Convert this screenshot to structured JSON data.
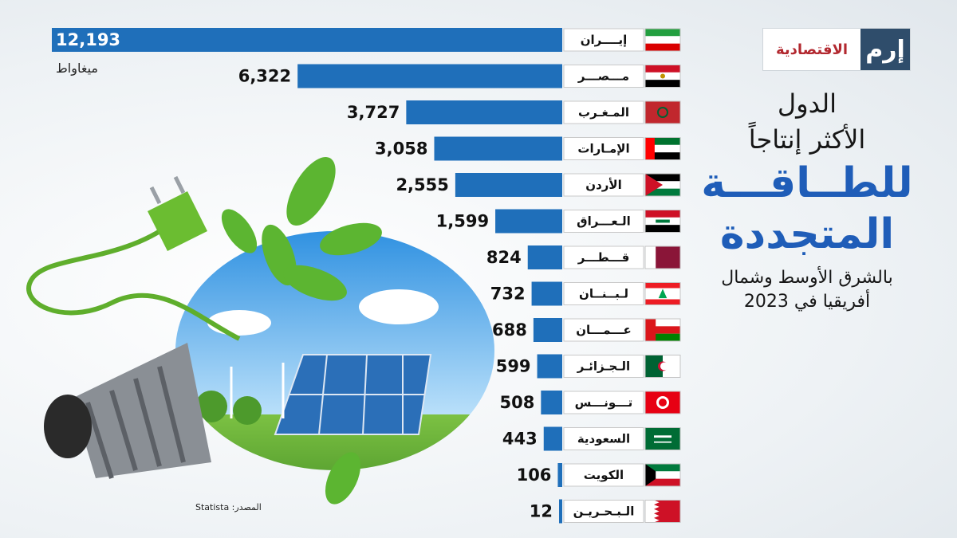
{
  "brand": {
    "mark": "إرم",
    "name": "الاقتصادية"
  },
  "title": {
    "line1": "الدول",
    "line2": "الأكثر إنتاجاً",
    "line3": "للطــاقـــة",
    "line4": "المتجددة",
    "line5": "بالشرق الأوسط وشمال",
    "line6": "أفريقيا في 2023"
  },
  "unit_label": "ميغاواط",
  "source_label": "Statista :المصدر",
  "colors": {
    "bar": "#1f6fba",
    "title_accent": "#1f5db8",
    "brand_red": "#b2282f",
    "brand_navy": "#2f4d6b"
  },
  "chart_data": {
    "type": "bar",
    "orientation": "horizontal",
    "categories": [
      "إيــــران",
      "مـــصـــر",
      "المـغـرب",
      "الإمـارات",
      "الأردن",
      "الـعـــراق",
      "قـــطـــر",
      "لـبــنــان",
      "عـــمـــان",
      "الـجـزائـر",
      "تـــونـــس",
      "السعودية",
      "الكويت",
      "الـبـحـريـن"
    ],
    "values": [
      12193,
      6322,
      3727,
      3058,
      2555,
      1599,
      824,
      732,
      688,
      599,
      508,
      443,
      106,
      12
    ],
    "value_labels": [
      "12,193",
      "6,322",
      "3,727",
      "3,058",
      "2,555",
      "1,599",
      "824",
      "732",
      "688",
      "599",
      "508",
      "443",
      "106",
      "12"
    ],
    "flags": [
      "iran-flag-icon",
      "egypt-flag-icon",
      "morocco-flag-icon",
      "uae-flag-icon",
      "jordan-flag-icon",
      "iraq-flag-icon",
      "qatar-flag-icon",
      "lebanon-flag-icon",
      "oman-flag-icon",
      "algeria-flag-icon",
      "tunisia-flag-icon",
      "saudi-flag-icon",
      "kuwait-flag-icon",
      "bahrain-flag-icon"
    ],
    "ylabel": "ميغاواط",
    "xlim": [
      0,
      12193
    ],
    "grid": false,
    "legend": "none"
  }
}
